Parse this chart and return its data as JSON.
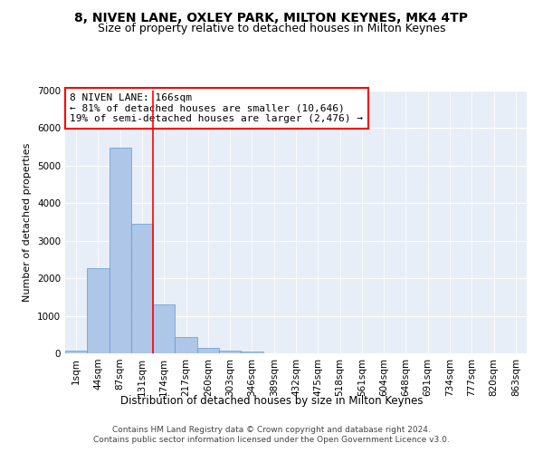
{
  "title1": "8, NIVEN LANE, OXLEY PARK, MILTON KEYNES, MK4 4TP",
  "title2": "Size of property relative to detached houses in Milton Keynes",
  "xlabel": "Distribution of detached houses by size in Milton Keynes",
  "ylabel": "Number of detached properties",
  "categories": [
    "1sqm",
    "44sqm",
    "87sqm",
    "131sqm",
    "174sqm",
    "217sqm",
    "260sqm",
    "303sqm",
    "346sqm",
    "389sqm",
    "432sqm",
    "475sqm",
    "518sqm",
    "561sqm",
    "604sqm",
    "648sqm",
    "691sqm",
    "734sqm",
    "777sqm",
    "820sqm",
    "863sqm"
  ],
  "values": [
    70,
    2280,
    5480,
    3440,
    1310,
    430,
    155,
    80,
    60,
    0,
    0,
    0,
    0,
    0,
    0,
    0,
    0,
    0,
    0,
    0,
    0
  ],
  "bar_color": "#aec6e8",
  "bar_edge_color": "#5b9bd5",
  "vline_color": "red",
  "vline_pos": 3.5,
  "ylim": [
    0,
    7000
  ],
  "annotation_text": "8 NIVEN LANE: 166sqm\n← 81% of detached houses are smaller (10,646)\n19% of semi-detached houses are larger (2,476) →",
  "annotation_box_color": "white",
  "annotation_box_edge": "red",
  "background_color": "#e8eef7",
  "footer_text": "Contains HM Land Registry data © Crown copyright and database right 2024.\nContains public sector information licensed under the Open Government Licence v3.0.",
  "title1_fontsize": 10,
  "title2_fontsize": 9,
  "xlabel_fontsize": 8.5,
  "ylabel_fontsize": 8,
  "tick_fontsize": 7.5,
  "annotation_fontsize": 8,
  "footer_fontsize": 6.5
}
